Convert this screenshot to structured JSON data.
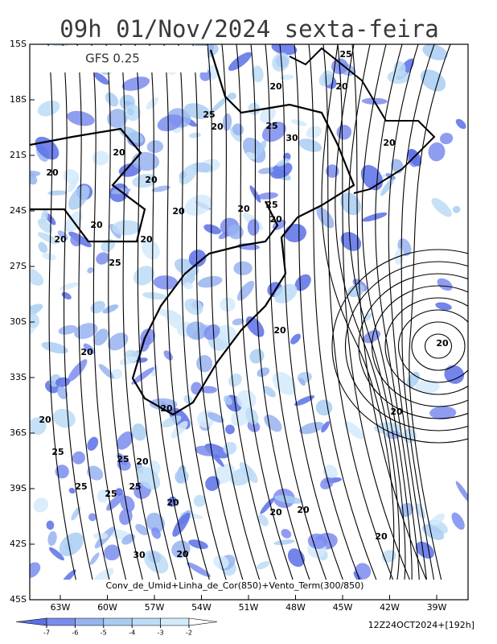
{
  "header": {
    "title": "09h 01/Nov/2024 sexta-feira",
    "model": "GFS 0.25"
  },
  "map": {
    "lat_labels": [
      "15S",
      "18S",
      "21S",
      "24S",
      "27S",
      "30S",
      "33S",
      "36S",
      "39S",
      "42S",
      "45S"
    ],
    "lon_labels": [
      "63W",
      "60W",
      "57W",
      "54W",
      "51W",
      "48W",
      "45W",
      "42W",
      "39W"
    ],
    "contour_labels": [
      "25",
      "20",
      "20",
      "25",
      "20",
      "25",
      "30",
      "20",
      "20",
      "20",
      "20",
      "20",
      "20",
      "25",
      "20",
      "20",
      "20",
      "20",
      "25",
      "20",
      "20",
      "20",
      "20",
      "20",
      "20",
      "25",
      "25",
      "20",
      "25",
      "25",
      "25",
      "20",
      "20",
      "20",
      "20",
      "30",
      "20"
    ],
    "caption": "Conv_de_Umid+Linha_de_Cor(850)+Vento_Term(300/850)"
  },
  "legend": {
    "ticks": [
      -7,
      -6,
      -5,
      -4,
      -3,
      -2
    ],
    "colors": [
      "#5b6fe6",
      "#7b8cee",
      "#97b3f0",
      "#a9cdf2",
      "#bcdcf6",
      "#d3eafb",
      "#ffffff"
    ]
  },
  "run": "12Z24OCT2024+[192h]"
}
